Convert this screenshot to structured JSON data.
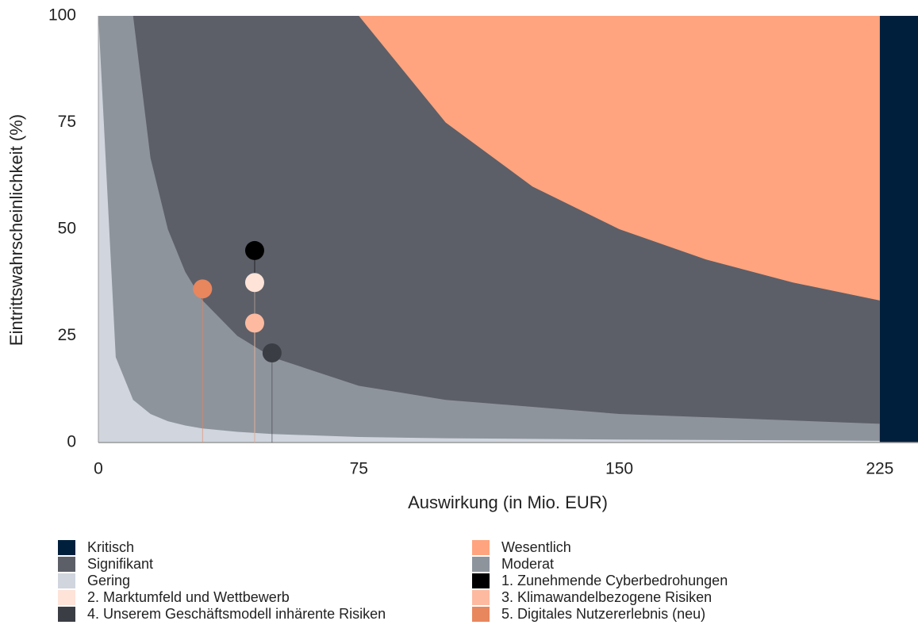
{
  "chart_data": {
    "type": "scatter",
    "xlabel": "Auswirkung (in Mio. EUR)",
    "ylabel": "Eintrittswahrscheinlichkeit (%)",
    "xlim": [
      0,
      236
    ],
    "ylim": [
      0,
      100
    ],
    "xticks": [
      0,
      75,
      150,
      225
    ],
    "yticks": [
      0,
      25,
      50,
      75,
      100
    ],
    "grid": false,
    "series": [
      {
        "name": "Kritisch",
        "type": "area",
        "color": "#001f3d",
        "x": [
          225,
          236
        ],
        "values": [
          100,
          100
        ]
      },
      {
        "name": "Wesentlich",
        "type": "area",
        "color": "#ffa47e",
        "x": [
          0,
          225
        ],
        "values": [
          100,
          100
        ]
      },
      {
        "name": "Signifikant",
        "type": "area",
        "color": "#5c5f68",
        "x": [
          0,
          75,
          100,
          125,
          150,
          175,
          200,
          225
        ],
        "values": [
          100,
          100,
          75,
          60,
          50,
          42.9,
          37.5,
          33.3
        ]
      },
      {
        "name": "Moderat",
        "type": "area",
        "color": "#8e949c",
        "x": [
          0,
          5,
          10,
          15,
          20,
          25,
          30,
          40,
          50,
          75,
          100,
          150,
          225
        ],
        "values": [
          100,
          100,
          100,
          66.7,
          50,
          40,
          33.3,
          25,
          20,
          13.3,
          10,
          6.7,
          4.4
        ]
      },
      {
        "name": "Gering",
        "type": "area",
        "color": "#d0d5de",
        "x": [
          0,
          5,
          10,
          15,
          20,
          25,
          30,
          40,
          50,
          75,
          100,
          150,
          225
        ],
        "values": [
          100,
          20,
          10,
          6.7,
          5,
          4,
          3.3,
          2.5,
          2,
          1.3,
          1,
          0.7,
          0.4
        ]
      },
      {
        "name": "1. Zunehmende Cyberbedrohungen",
        "type": "scatter",
        "color": "#000000",
        "x": [
          45
        ],
        "values": [
          45
        ]
      },
      {
        "name": "2. Marktumfeld und Wettbewerb",
        "type": "scatter",
        "color": "#fde3d8",
        "x": [
          45
        ],
        "values": [
          37.5
        ]
      },
      {
        "name": "3. Klimawandelbezogene Risiken",
        "type": "scatter",
        "color": "#fdbaa0",
        "x": [
          45
        ],
        "values": [
          28
        ]
      },
      {
        "name": "4. Unserem Geschäftsmodell inhärente Risiken",
        "type": "scatter",
        "color": "#3b3d45",
        "x": [
          50
        ],
        "values": [
          21
        ]
      },
      {
        "name": "5. Digitales Nutzererlebnis (neu)",
        "type": "scatter",
        "color": "#e8865e",
        "x": [
          30
        ],
        "values": [
          36
        ]
      }
    ]
  }
}
